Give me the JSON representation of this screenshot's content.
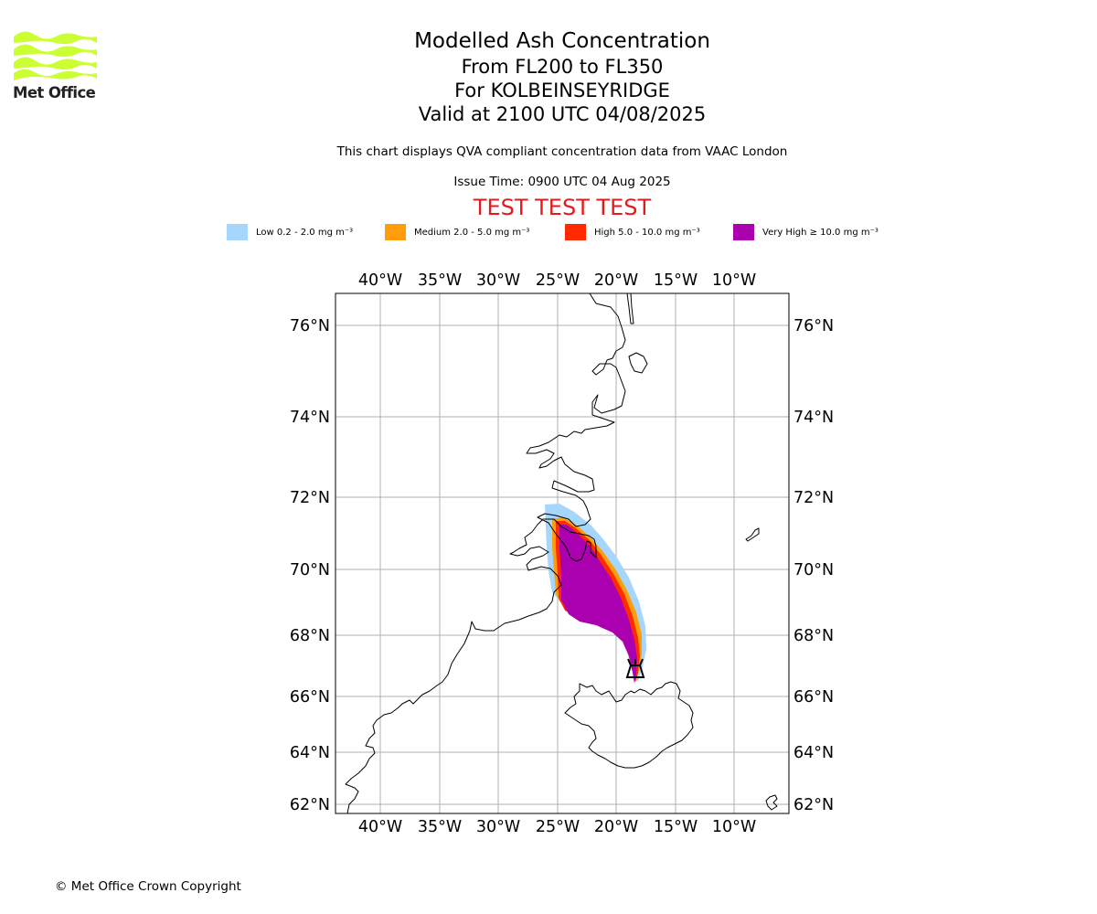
{
  "logo": {
    "text": "Met Office",
    "color": "#ccff33"
  },
  "title": {
    "line1": "Modelled Ash Concentration",
    "line2": "From FL200 to FL350",
    "line3": "For KOLBEINSEYRIDGE",
    "line4": "Valid at 2100 UTC 04/08/2025"
  },
  "subtitle": "This chart displays QVA compliant concentration data from VAAC London",
  "issue_time": "Issue Time: 0900 UTC 04 Aug 2025",
  "test_banner": "TEST TEST TEST",
  "legend": [
    {
      "label": "Low 0.2 - 2.0 mg m⁻³",
      "color": "#a6d6fb"
    },
    {
      "label": "Medium 2.0 - 5.0 mg m⁻³",
      "color": "#ff9e0a"
    },
    {
      "label": "High 5.0 - 10.0 mg m⁻³",
      "color": "#ff2a00"
    },
    {
      "label": "Very High ≥ 10.0 mg m⁻³",
      "color": "#ab00b0"
    }
  ],
  "axes": {
    "lon_labels": [
      "40°W",
      "35°W",
      "30°W",
      "25°W",
      "20°W",
      "15°W",
      "10°W"
    ],
    "lat_labels": [
      "76°N",
      "74°N",
      "72°N",
      "70°N",
      "68°N",
      "66°N",
      "64°N",
      "62°N"
    ]
  },
  "copyright": "© Met Office Crown Copyright"
}
